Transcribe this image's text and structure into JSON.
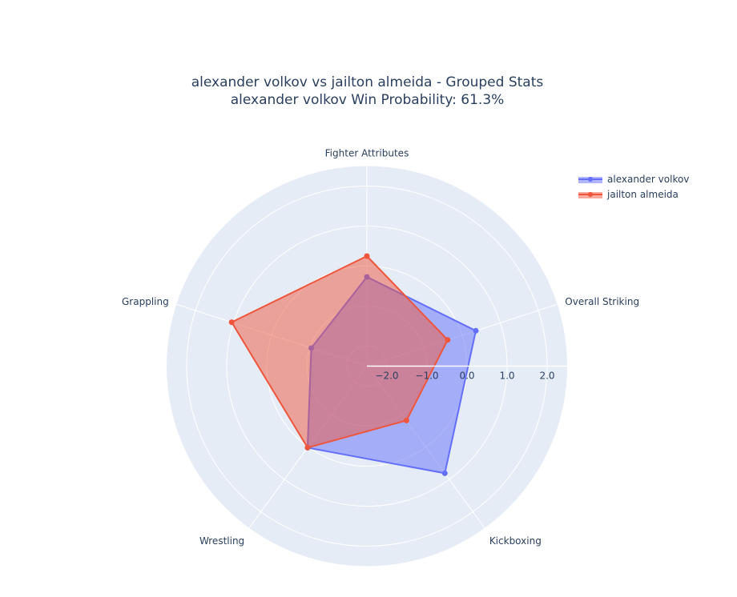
{
  "title": {
    "line1": "alexander volkov vs jailton almeida - Grouped Stats",
    "line2": "alexander volkov Win Probability: 61.3%"
  },
  "legend": {
    "items": [
      {
        "label": "alexander volkov",
        "color": "#636efa"
      },
      {
        "label": "jailton almeida",
        "color": "#ef553b"
      }
    ]
  },
  "colors": {
    "polar_bg": "#e5ecf6",
    "grid": "#ffffff",
    "text": "#2a3f5f"
  },
  "chart_data": {
    "type": "radar",
    "title": "alexander volkov vs jailton almeida - Grouped Stats",
    "subtitle": "alexander volkov Win Probability: 61.3%",
    "categories": [
      "Fighter Attributes",
      "Overall Striking",
      "Kickboxing",
      "Wrestling",
      "Grappling"
    ],
    "series": [
      {
        "name": "alexander volkov",
        "color": "#636efa",
        "values": [
          -0.27,
          0.36,
          0.81,
          0.02,
          -1.04
        ]
      },
      {
        "name": "jailton almeida",
        "color": "#ef553b",
        "values": [
          0.25,
          -0.38,
          -0.82,
          0.02,
          1.05
        ]
      }
    ],
    "radial_range": [
      -2.5,
      2.5
    ],
    "radial_ticks": [
      "−2.0",
      "−1.0",
      "0.0",
      "1.0",
      "2.0"
    ],
    "radial_tick_values": [
      -2.0,
      -1.0,
      0.0,
      1.0,
      2.0
    ],
    "angular_direction": "clockwise",
    "rotation_deg": 90,
    "fill": "toself",
    "grid": true,
    "legend_position": "top-right"
  }
}
